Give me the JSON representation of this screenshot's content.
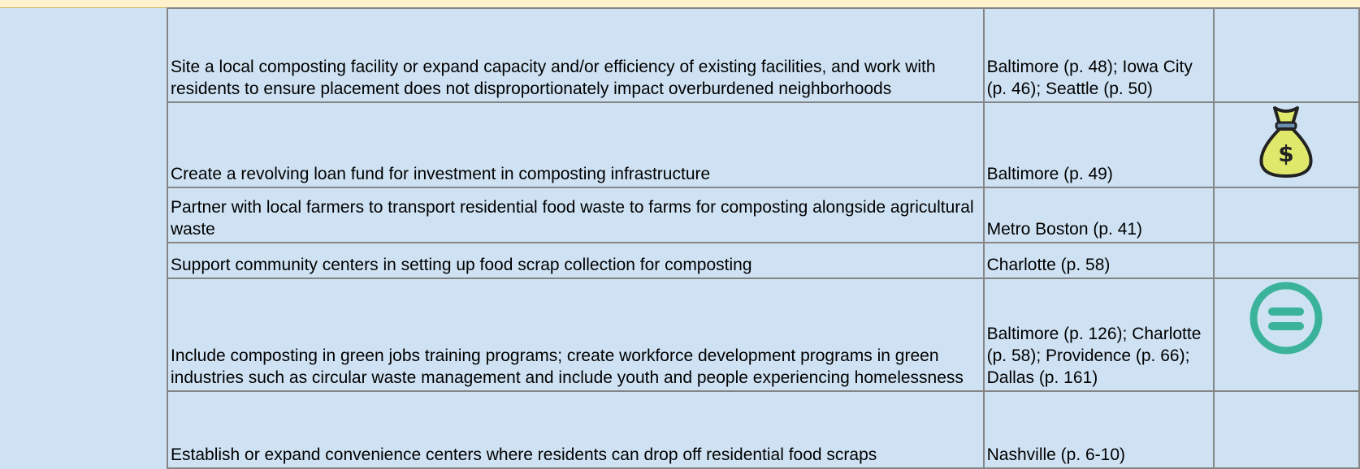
{
  "table": {
    "rows": [
      [
        "Site a local composting facility or expand capacity and/or efficiency of existing facilities, and work with residents to ensure placement does not disproportionately impact overburdened neighborhoods",
        "Baltimore (p. 48); Iowa City (p. 46); Seattle (p. 50)"
      ],
      [
        "Create a revolving loan fund for investment in composting infrastructure",
        "Baltimore (p. 49)"
      ],
      [
        "Partner with local farmers to transport residential food waste to farms for composting alongside agricultural waste",
        "Metro Boston (p. 41)"
      ],
      [
        "Support community centers in setting up food scrap collection for composting",
        "Charlotte (p. 58)"
      ],
      [
        "Include composting in green jobs training programs; create workforce development programs in green industries such as circular waste management and include youth and people experiencing homelessness",
        "Baltimore (p. 126); Charlotte (p. 58); Providence (p. 66); Dallas (p. 161)"
      ],
      [
        "Establish or expand convenience centers where residents can drop off residential food scraps",
        "Nashville (p. 6-10)"
      ]
    ]
  }
}
